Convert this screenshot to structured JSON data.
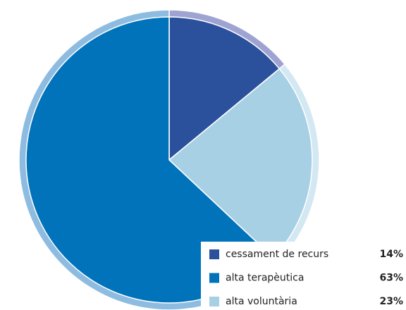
{
  "chart_data": {
    "type": "pie",
    "categories": [
      "cessament de recurs",
      "alta terapèutica",
      "alta voluntària"
    ],
    "values": [
      14,
      63,
      23
    ],
    "value_labels": [
      "14%",
      "63%",
      "23%"
    ],
    "colors": [
      "#2b519c",
      "#0073ba",
      "#a8d0e5"
    ],
    "ring_colors": [
      "#9ea3d2",
      "#8dbce0",
      "#d3e8f2"
    ],
    "legend": "bottom-right"
  }
}
